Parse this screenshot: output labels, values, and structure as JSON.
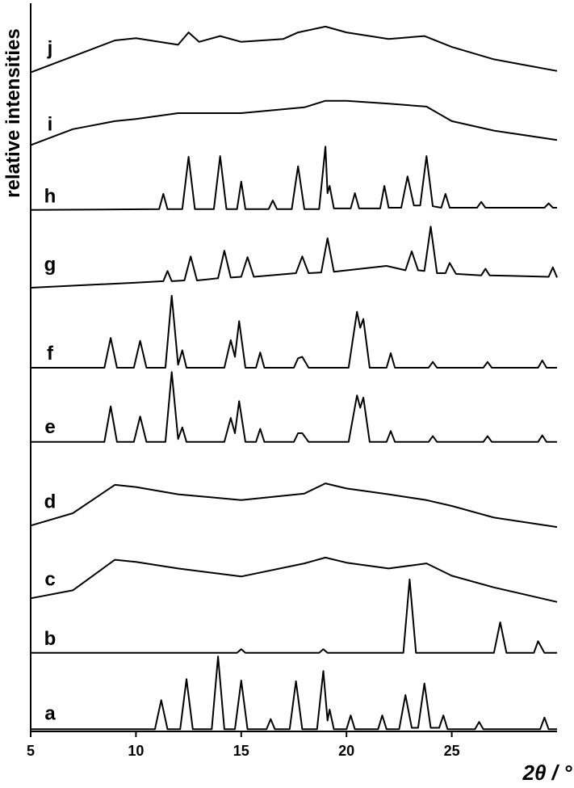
{
  "chart_data": {
    "type": "line",
    "ylabel": "relative intensities",
    "xlabel": "2θ / °",
    "xlim": [
      5,
      30
    ],
    "xticks": [
      5,
      10,
      15,
      20,
      25
    ],
    "ylim": [
      0,
      100
    ],
    "color": "#000000",
    "series": [
      {
        "name": "a",
        "x": [
          5,
          10.9,
          11.2,
          11.5,
          12.1,
          12.4,
          12.7,
          13.6,
          13.9,
          14.2,
          14.7,
          15.0,
          15.3,
          16.2,
          16.4,
          16.6,
          17.3,
          17.6,
          17.9,
          18.6,
          18.9,
          19.1,
          19.2,
          19.4,
          20.0,
          20.2,
          20.4,
          21.5,
          21.7,
          21.9,
          22.5,
          22.8,
          23.1,
          23.4,
          23.7,
          24.0,
          24.4,
          24.6,
          24.8,
          26.1,
          26.3,
          26.5,
          29.2,
          29.4,
          29.6,
          30
        ],
        "values": [
          0.3,
          0.3,
          4.3,
          0.3,
          0.3,
          7.2,
          0.3,
          0.3,
          10.3,
          0.3,
          0.3,
          7.0,
          0.3,
          0.3,
          1.7,
          0.3,
          0.3,
          6.9,
          0.3,
          0.3,
          8.3,
          1.5,
          3.0,
          0.3,
          0.3,
          2.2,
          0.3,
          0.3,
          2.2,
          0.3,
          0.3,
          5.0,
          0.5,
          0.5,
          6.6,
          0.5,
          0.5,
          2.2,
          0.3,
          0.3,
          1.3,
          0.3,
          0.3,
          1.9,
          0.3,
          0.3
        ]
      },
      {
        "name": "b",
        "x": [
          5,
          14.8,
          15.0,
          15.2,
          18.7,
          18.9,
          19.1,
          22.7,
          23.0,
          23.3,
          27.0,
          27.3,
          27.6,
          28.9,
          29.1,
          29.4,
          30
        ],
        "values": [
          10.8,
          10.8,
          11.3,
          10.8,
          10.8,
          11.3,
          10.8,
          10.8,
          20.9,
          10.8,
          10.8,
          15.0,
          10.8,
          10.8,
          12.4,
          10.8,
          10.8
        ]
      },
      {
        "name": "c",
        "x": [
          5,
          7,
          9,
          10,
          12,
          15,
          18,
          19,
          20,
          22,
          23.8,
          25,
          27,
          30
        ],
        "values": [
          18.3,
          19.4,
          23.6,
          23.3,
          22.4,
          21.3,
          23.1,
          23.9,
          23.2,
          22.4,
          23.1,
          21.4,
          19.8,
          17.8
        ]
      },
      {
        "name": "d",
        "x": [
          5,
          7,
          9,
          10,
          12,
          15,
          18,
          19,
          20,
          22,
          23.8,
          25,
          27,
          30
        ],
        "values": [
          28.3,
          30,
          33.9,
          33.6,
          32.6,
          31.8,
          32.7,
          34.1,
          33.4,
          32.6,
          31.8,
          31,
          29.4,
          28.1
        ]
      },
      {
        "name": "e",
        "x": [
          5,
          8.5,
          8.8,
          9.1,
          9.9,
          10.2,
          10.5,
          11.4,
          11.7,
          12.0,
          12.2,
          12.4,
          14.2,
          14.5,
          14.7,
          14.9,
          15.2,
          15.7,
          15.9,
          16.1,
          17.5,
          17.7,
          17.9,
          18.2,
          20.1,
          20.5,
          20.65,
          20.8,
          21.1,
          21.9,
          22.1,
          22.3,
          23.9,
          24.1,
          24.3,
          26.5,
          26.7,
          26.9,
          29.1,
          29.3,
          29.5,
          30
        ],
        "values": [
          39.8,
          39.8,
          44.7,
          39.8,
          39.8,
          43.3,
          39.8,
          39.8,
          49.4,
          40.2,
          41.8,
          39.8,
          39.8,
          43.1,
          41.0,
          45.4,
          39.8,
          39.8,
          41.6,
          39.8,
          39.8,
          41.0,
          41.0,
          39.8,
          39.8,
          46.2,
          44.5,
          45.9,
          39.8,
          39.8,
          41.3,
          39.8,
          39.8,
          40.6,
          39.8,
          39.8,
          40.6,
          39.8,
          39.8,
          40.7,
          39.8,
          39.8
        ]
      },
      {
        "name": "f",
        "x": [
          5,
          8.5,
          8.8,
          9.1,
          9.9,
          10.2,
          10.5,
          11.4,
          11.7,
          12.0,
          12.2,
          12.4,
          14.2,
          14.5,
          14.7,
          14.9,
          15.2,
          15.7,
          15.9,
          16.1,
          17.5,
          17.7,
          17.9,
          18.2,
          20.1,
          20.5,
          20.65,
          20.8,
          21.1,
          21.9,
          22.1,
          22.3,
          23.9,
          24.1,
          24.3,
          26.5,
          26.7,
          26.9,
          29.1,
          29.3,
          29.5,
          30
        ],
        "values": [
          50,
          50,
          54.1,
          50,
          50,
          53.7,
          50,
          50,
          59.9,
          50.4,
          52.4,
          50,
          50,
          53.8,
          51.5,
          56.4,
          50,
          50,
          52.1,
          50,
          50,
          51.3,
          51.5,
          50,
          50,
          57.7,
          55.5,
          56.7,
          50,
          50,
          52,
          50,
          50,
          50.8,
          50,
          50,
          50.8,
          50,
          50,
          51,
          50,
          50
        ]
      },
      {
        "name": "g",
        "x": [
          5,
          10,
          11.3,
          11.5,
          11.7,
          12.3,
          12.6,
          12.9,
          13.9,
          14.2,
          14.5,
          15.0,
          15.3,
          15.6,
          17.6,
          17.9,
          18.2,
          18.8,
          19.1,
          19.4,
          21.9,
          22.8,
          23.1,
          23.4,
          23.7,
          24.0,
          24.3,
          24.7,
          24.9,
          25.2,
          26.4,
          26.6,
          26.8,
          29.6,
          29.8,
          30
        ],
        "values": [
          61,
          61.7,
          61.9,
          63.3,
          61.9,
          62,
          65.3,
          62,
          62.3,
          66.1,
          62.4,
          62.5,
          65.2,
          62.5,
          63,
          65.3,
          63,
          63.1,
          67.8,
          63.2,
          64,
          63.4,
          66,
          63.4,
          63.3,
          69.4,
          63,
          63,
          64.4,
          62.9,
          62.7,
          63.6,
          62.7,
          62.5,
          63.8,
          62.4
        ]
      },
      {
        "name": "h",
        "x": [
          5,
          11.1,
          11.3,
          11.5,
          12.2,
          12.5,
          12.8,
          13.7,
          14.0,
          14.3,
          14.8,
          15.0,
          15.2,
          16.3,
          16.5,
          16.7,
          17.4,
          17.7,
          18.0,
          18.7,
          19.0,
          19.1,
          19.2,
          19.4,
          20.2,
          20.4,
          20.6,
          21.6,
          21.8,
          22.0,
          22.6,
          22.9,
          23.2,
          23.5,
          23.8,
          24.1,
          24.5,
          24.7,
          24.9,
          26.2,
          26.4,
          26.6,
          29.4,
          29.6,
          29.8,
          30
        ],
        "values": [
          71.7,
          71.8,
          73.9,
          71.8,
          71.8,
          79,
          71.8,
          71.8,
          79.1,
          71.8,
          71.8,
          75.6,
          71.8,
          71.8,
          73,
          71.8,
          71.8,
          77.7,
          71.8,
          71.8,
          80.4,
          74,
          75,
          71.9,
          71.9,
          74,
          71.9,
          71.9,
          75,
          72,
          72,
          76.3,
          72.3,
          72.3,
          79.1,
          72.2,
          72,
          73.9,
          72,
          72,
          72.8,
          72,
          72,
          72.6,
          72,
          72
        ]
      },
      {
        "name": "i",
        "x": [
          5,
          7,
          9,
          10,
          12,
          15,
          18,
          19,
          20,
          22,
          23.8,
          25,
          27,
          30
        ],
        "values": [
          80.6,
          82.8,
          83.9,
          84.2,
          85,
          85,
          85.8,
          86.7,
          86.7,
          86.3,
          85.9,
          83.9,
          82.6,
          81.3
        ]
      },
      {
        "name": "j",
        "x": [
          5,
          7,
          9,
          10,
          12,
          12.5,
          13,
          14,
          15,
          17,
          17.7,
          19,
          20,
          22,
          23.7,
          25,
          27,
          30
        ],
        "values": [
          90.6,
          92.8,
          95,
          95.3,
          94.4,
          96.1,
          94.8,
          95.6,
          94.8,
          95.2,
          96.1,
          96.9,
          96.1,
          95.2,
          95.6,
          94.1,
          92.4,
          90.8
        ]
      }
    ]
  }
}
